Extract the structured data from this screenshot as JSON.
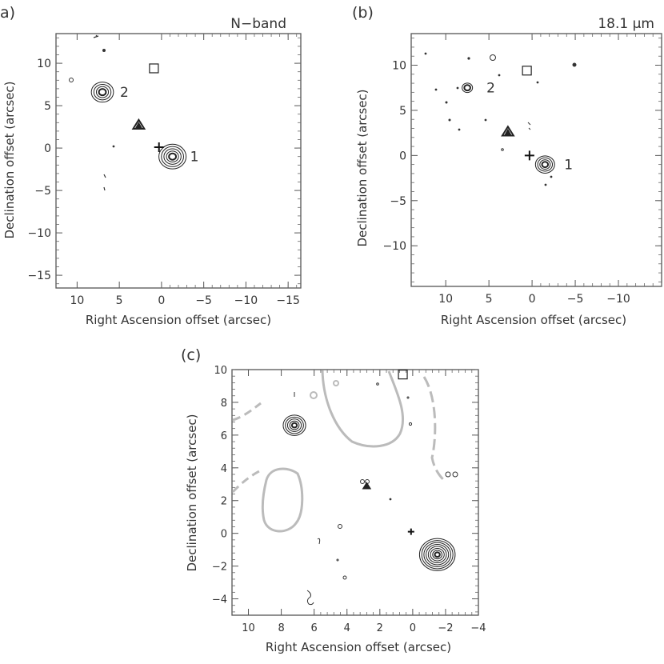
{
  "chart_data": [
    {
      "panel_label": "a)",
      "type": "contour",
      "band_label": "N−band",
      "xlabel": "Right Ascension offset (arcsec)",
      "ylabel": "Declination offset (arcsec)",
      "xlim": [
        12.5,
        -16.5
      ],
      "ylim": [
        -16.5,
        13.5
      ],
      "xticks": [
        10,
        5,
        0,
        -5,
        -10,
        -15
      ],
      "xtick_labels": [
        "10",
        "5",
        "0",
        "−5",
        "−10",
        "−15"
      ],
      "yticks": [
        10,
        5,
        0,
        -5,
        -10,
        -15
      ],
      "ytick_labels": [
        "10",
        "5",
        "0",
        "−5",
        "−10",
        "−15"
      ],
      "sources": [
        {
          "label": "1",
          "x": -1.3,
          "y": -1.0,
          "levels": 5
        },
        {
          "label": "2",
          "x": 7.0,
          "y": 6.6,
          "levels": 4
        }
      ],
      "triangle": {
        "x": 2.7,
        "y": 2.8
      },
      "cross": {
        "x": 0.3,
        "y": 0.1
      },
      "square": {
        "x": 0.9,
        "y": 9.4
      }
    },
    {
      "panel_label": "(b)",
      "type": "contour",
      "band_label": "18.1 μm",
      "xlabel": "Right Ascension offset (arcsec)",
      "ylabel": "Declination offset (arcsec)",
      "xlim": [
        14.0,
        -15.0
      ],
      "ylim": [
        -14.5,
        13.5
      ],
      "xticks": [
        10,
        5,
        0,
        -5,
        -10
      ],
      "xtick_labels": [
        "10",
        "5",
        "0",
        "−5",
        "−10"
      ],
      "yticks": [
        10,
        5,
        0,
        -5,
        -10
      ],
      "ytick_labels": [
        "10",
        "5",
        "0",
        "−5",
        "−10"
      ],
      "sources": [
        {
          "label": "1",
          "x": -1.5,
          "y": -1.0,
          "levels": 4
        },
        {
          "label": "2",
          "x": 7.5,
          "y": 7.5,
          "levels": 2
        }
      ],
      "triangle": {
        "x": 2.8,
        "y": 2.7
      },
      "cross": {
        "x": 0.3,
        "y": 0.0
      },
      "square": {
        "x": 0.6,
        "y": 9.4
      }
    },
    {
      "panel_label": "(c)",
      "type": "contour",
      "xlabel": "Right Ascension offset (arcsec)",
      "ylabel": "Declination offset (arcsec)",
      "xlim": [
        11.0,
        -4.0
      ],
      "ylim": [
        -5.0,
        10.0
      ],
      "xticks": [
        10,
        8,
        6,
        4,
        2,
        0,
        -2,
        -4
      ],
      "xtick_labels": [
        "10",
        "8",
        "6",
        "4",
        "2",
        "0",
        "−2",
        "−4"
      ],
      "yticks": [
        10,
        8,
        6,
        4,
        2,
        0,
        -2,
        -4
      ],
      "ytick_labels": [
        "10",
        "8",
        "6",
        "4",
        "2",
        "0",
        "−2",
        "−4"
      ],
      "sources": [
        {
          "x": -1.5,
          "y": -1.3,
          "levels": 8
        },
        {
          "x": 7.2,
          "y": 6.6,
          "levels": 5
        }
      ],
      "triangle": {
        "x": 2.8,
        "y": 2.9
      },
      "cross": {
        "x": 0.1,
        "y": 0.1
      },
      "square": {
        "x": 0.6,
        "y": 9.7
      },
      "overlay_color": "#bbbbbb"
    }
  ]
}
